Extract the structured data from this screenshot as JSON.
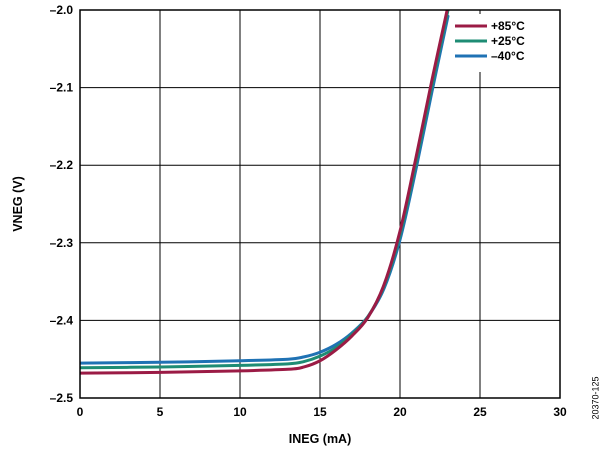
{
  "chart_data": {
    "type": "line",
    "xlabel": "INEG (mA)",
    "ylabel": "VNEG (V)",
    "xlim": [
      0,
      30
    ],
    "ylim": [
      -2.5,
      -2.0
    ],
    "x_ticks": [
      "0",
      "5",
      "10",
      "15",
      "20",
      "25",
      "30"
    ],
    "y_ticks": [
      "–2.0",
      "–2.1",
      "–2.2",
      "–2.3",
      "–2.4",
      "–2.5"
    ],
    "grid": true,
    "legend_position": "top-right",
    "series": [
      {
        "name": "+85°C",
        "color": "#9b1b45",
        "x": [
          0,
          5,
          10,
          13,
          14,
          15,
          16,
          17,
          18,
          19,
          20,
          21,
          22,
          23
        ],
        "y": [
          -2.468,
          -2.467,
          -2.465,
          -2.463,
          -2.46,
          -2.452,
          -2.438,
          -2.42,
          -2.396,
          -2.354,
          -2.285,
          -2.19,
          -2.09,
          -1.995
        ]
      },
      {
        "name": "+25°C",
        "color": "#1e8c74",
        "x": [
          0,
          5,
          10,
          13,
          14,
          15,
          16,
          17,
          18,
          19,
          20,
          21,
          22,
          23
        ],
        "y": [
          -2.461,
          -2.46,
          -2.458,
          -2.456,
          -2.453,
          -2.446,
          -2.435,
          -2.418,
          -2.395,
          -2.356,
          -2.29,
          -2.197,
          -2.097,
          -2.0
        ]
      },
      {
        "name": "–40°C",
        "color": "#1f72b4",
        "x": [
          0,
          5,
          10,
          13,
          14,
          15,
          16,
          17,
          18,
          19,
          20,
          21,
          22,
          23
        ],
        "y": [
          -2.455,
          -2.454,
          -2.452,
          -2.45,
          -2.447,
          -2.441,
          -2.431,
          -2.416,
          -2.395,
          -2.359,
          -2.296,
          -2.205,
          -2.105,
          -2.008
        ]
      }
    ]
  },
  "figure_id": "20370-125"
}
